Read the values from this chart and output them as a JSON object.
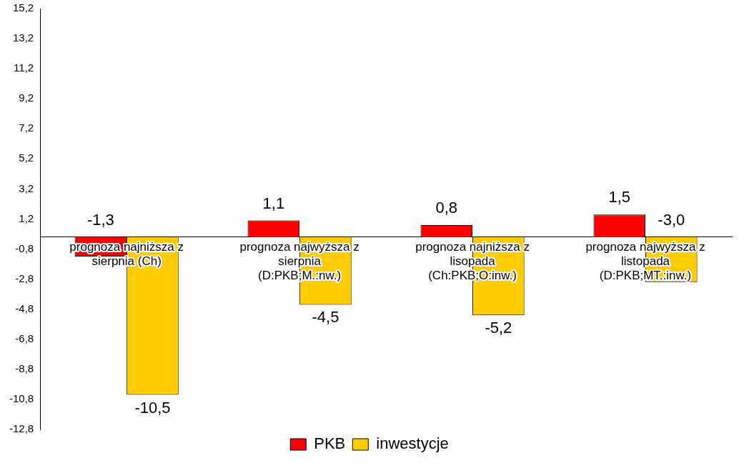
{
  "chart_data": {
    "type": "bar",
    "categories": [
      "prognoza najniższa z sierpnia (Ch)",
      "prognoza najwyższa z sierpnia (D:PKB;M.:nw.)",
      "prognoza najniższa z lisopada (Ch:PKB;O:inw.)",
      "prognoza najwyższa z listopada (D:PKB;MT.:inw.)"
    ],
    "series": [
      {
        "name": "PKB",
        "color": "#ff0000",
        "values": [
          -1.3,
          1.1,
          0.8,
          1.5
        ],
        "value_labels": [
          "-1,3",
          "1,1",
          "0,8",
          "1,5"
        ]
      },
      {
        "name": "inwestycje",
        "color": "#ffcc00",
        "values": [
          -10.5,
          -4.5,
          -5.2,
          -3.0
        ],
        "value_labels": [
          "-10,5",
          "-4,5",
          "-5,2",
          "-3,0"
        ]
      }
    ],
    "ylim": [
      -12.8,
      15.2
    ],
    "yticks": [
      {
        "value": -12.8,
        "label": "-12,8"
      },
      {
        "value": -10.8,
        "label": "-10,8"
      },
      {
        "value": -8.8,
        "label": "-8,8"
      },
      {
        "value": -6.8,
        "label": "-6,8"
      },
      {
        "value": -4.8,
        "label": "-4,8"
      },
      {
        "value": -2.8,
        "label": "-2,8"
      },
      {
        "value": -0.8,
        "label": "-0,8"
      },
      {
        "value": 1.2,
        "label": "1,2"
      },
      {
        "value": 3.2,
        "label": "3,2"
      },
      {
        "value": 5.2,
        "label": "5,2"
      },
      {
        "value": 7.2,
        "label": "7,2"
      },
      {
        "value": 9.2,
        "label": "9,2"
      },
      {
        "value": 11.2,
        "label": "11,2"
      },
      {
        "value": 13.2,
        "label": "13,2"
      },
      {
        "value": 15.2,
        "label": "15,2"
      }
    ],
    "grid": false,
    "legend": "bottom"
  }
}
